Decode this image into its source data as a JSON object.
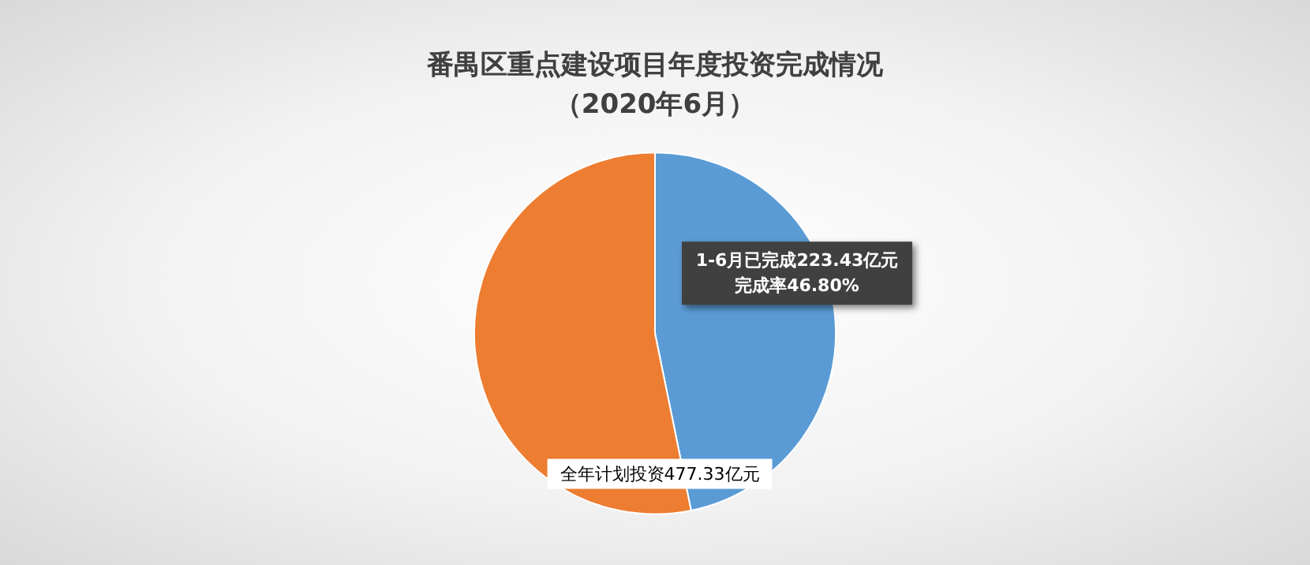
{
  "chart_data": {
    "type": "pie",
    "title": "番禺区重点建设项目年度投资完成情况",
    "subtitle": "（2020年6月）",
    "categories": [
      "1-6月已完成223.43亿元完成率46.80%",
      "全年计划投资477.33亿元"
    ],
    "values": [
      46.8,
      53.2
    ],
    "colors": [
      "#5b9bd5",
      "#ed7d31"
    ]
  }
}
